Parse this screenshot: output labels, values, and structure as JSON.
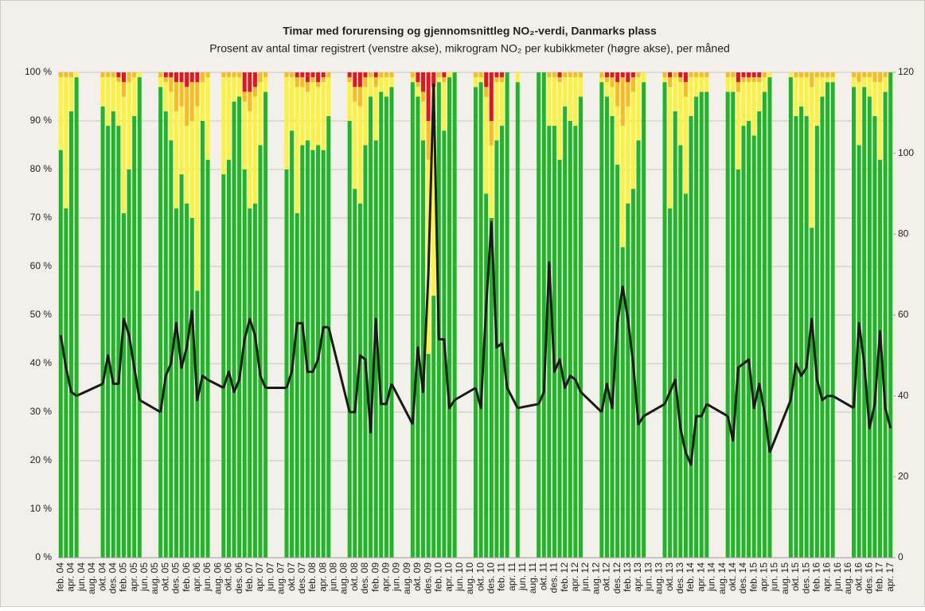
{
  "chart_data": {
    "type": "bar",
    "stacked": true,
    "title": "Timar med forurensing og gjennomsnittleg NO₂-verdi, Danmarks plass",
    "subtitle": "Prosent av antal timar registrert (venstre akse), mikrogram NO₂ per kubikkmeter (høgre akse), per måned",
    "categories": [
      "feb. 04",
      null,
      "apr. 04",
      null,
      "jun. 04",
      null,
      "aug. 04",
      null,
      "okt. 04",
      null,
      "des. 04",
      null,
      "feb. 05",
      null,
      "apr. 05",
      null,
      "jun. 05",
      null,
      "aug. 05",
      null,
      "okt. 05",
      null,
      "des. 05",
      null,
      "feb. 06",
      null,
      "apr. 06",
      null,
      "jun. 06",
      null,
      "aug. 06",
      null,
      "okt. 06",
      null,
      "des. 06",
      null,
      "feb. 07",
      null,
      "apr. 07",
      null,
      "jun. 07",
      null,
      "aug. 07",
      null,
      "okt. 07",
      null,
      "des. 07",
      null,
      "feb. 08",
      null,
      "apr. 08",
      null,
      "jun. 08",
      null,
      "aug. 08",
      null,
      "okt. 08",
      null,
      "des. 08",
      null,
      "feb. 09",
      null,
      "apr. 09",
      null,
      "jun. 09",
      null,
      "aug. 09",
      null,
      "okt. 09",
      null,
      "des. 09",
      null,
      "feb. 10",
      null,
      "apr. 10",
      null,
      "jun. 10",
      null,
      "aug. 10",
      null,
      "okt. 10",
      null,
      "des. 10",
      null,
      "feb. 11",
      null,
      "apr. 11",
      null,
      "jun. 11",
      null,
      "aug. 11",
      null,
      "okt. 11",
      null,
      "des. 11",
      null,
      "feb. 12",
      null,
      "apr. 12",
      null,
      "jun. 12",
      null,
      "aug. 12",
      null,
      "okt. 12",
      null,
      "des. 12",
      null,
      "feb. 13",
      null,
      "apr. 13",
      null,
      "jun. 13",
      null,
      "aug. 13",
      null,
      "okt. 13",
      null,
      "des. 13",
      null,
      "feb. 14",
      null,
      "apr. 14",
      null,
      "jun. 14",
      null,
      "aug. 14",
      null,
      "okt. 14",
      null,
      "des. 14",
      null,
      "feb. 15",
      null,
      "apr. 15",
      null,
      "jun. 15",
      null,
      "aug. 15",
      null,
      "okt. 15",
      null,
      "des. 15",
      null,
      "feb. 16",
      null,
      "apr. 16",
      null,
      "jun. 16",
      null,
      "aug. 16",
      null,
      "okt. 16",
      null,
      "des. 16",
      null,
      "feb. 17",
      null,
      "apr. 17"
    ],
    "series": [
      {
        "color": "#1fb526",
        "values": [
          84,
          72,
          92,
          99,
          null,
          null,
          null,
          null,
          93,
          89,
          92,
          89,
          71,
          80,
          91,
          99,
          null,
          null,
          null,
          97,
          92,
          86,
          72,
          79,
          73,
          70,
          55,
          90,
          82,
          null,
          null,
          79,
          82,
          94,
          95,
          80,
          72,
          73,
          85,
          96,
          null,
          null,
          null,
          80,
          88,
          71,
          85,
          86,
          84,
          85,
          84,
          91,
          null,
          null,
          null,
          90,
          76,
          73,
          85,
          95,
          86,
          96,
          95,
          97,
          null,
          null,
          null,
          98,
          95,
          86,
          42,
          54,
          98,
          88,
          99,
          100,
          null,
          null,
          null,
          97,
          98,
          75,
          70,
          86,
          89,
          100,
          null,
          98,
          null,
          null,
          null,
          100,
          100,
          89,
          89,
          82,
          93,
          90,
          89,
          95,
          null,
          null,
          null,
          98,
          95,
          91,
          81,
          64,
          73,
          76,
          86,
          98,
          null,
          null,
          null,
          98,
          72,
          92,
          85,
          75,
          91,
          95,
          96,
          96,
          null,
          null,
          null,
          96,
          96,
          80,
          89,
          90,
          87,
          92,
          96,
          99,
          null,
          null,
          null,
          99,
          91,
          93,
          91,
          68,
          89,
          95,
          98,
          98,
          null,
          null,
          null,
          97,
          85,
          97,
          95,
          91,
          82,
          96,
          100
        ]
      },
      {
        "color": "#fbf23a",
        "values": [
          15,
          27,
          7,
          1,
          null,
          null,
          null,
          null,
          6,
          10,
          7,
          9,
          24,
          18,
          8,
          1,
          null,
          null,
          null,
          2,
          6,
          10,
          20,
          14,
          16,
          20,
          38,
          8,
          17,
          null,
          null,
          20,
          17,
          5,
          4,
          14,
          20,
          22,
          13,
          3,
          null,
          null,
          null,
          19,
          11,
          26,
          12,
          10,
          14,
          12,
          14,
          8,
          null,
          null,
          null,
          8,
          18,
          20,
          12,
          4,
          11,
          3,
          4,
          2,
          null,
          null,
          null,
          1,
          2,
          8,
          40,
          40,
          1,
          10,
          1,
          0,
          null,
          null,
          null,
          2,
          1,
          20,
          15,
          12,
          9,
          0,
          null,
          2,
          null,
          null,
          null,
          0,
          0,
          10,
          10,
          16,
          6,
          9,
          10,
          4,
          null,
          null,
          null,
          1,
          3,
          6,
          12,
          25,
          20,
          20,
          13,
          2,
          null,
          null,
          null,
          1,
          25,
          7,
          13,
          20,
          8,
          4,
          3,
          3,
          null,
          null,
          null,
          3,
          3,
          16,
          9,
          8,
          11,
          6,
          3,
          1,
          null,
          null,
          null,
          1,
          8,
          6,
          8,
          29,
          10,
          4,
          1,
          1,
          null,
          null,
          null,
          2,
          13,
          2,
          4,
          7,
          16,
          3,
          0
        ]
      },
      {
        "color": "#f9bd18",
        "values": [
          1,
          1,
          1,
          0,
          null,
          null,
          null,
          null,
          1,
          1,
          1,
          1,
          3,
          2,
          1,
          0,
          null,
          null,
          null,
          1,
          1,
          3,
          6,
          5,
          8,
          8,
          5,
          2,
          1,
          null,
          null,
          1,
          1,
          1,
          1,
          2,
          4,
          2,
          2,
          1,
          null,
          null,
          null,
          1,
          1,
          2,
          2,
          2,
          1,
          1,
          1,
          1,
          null,
          null,
          null,
          1,
          3,
          4,
          2,
          1,
          2,
          1,
          1,
          1,
          null,
          null,
          null,
          1,
          1,
          2,
          8,
          3,
          1,
          1,
          0,
          0,
          null,
          null,
          null,
          1,
          1,
          2,
          5,
          1,
          1,
          0,
          null,
          0,
          null,
          null,
          null,
          0,
          0,
          1,
          1,
          1,
          1,
          1,
          1,
          1,
          null,
          null,
          null,
          1,
          1,
          2,
          5,
          10,
          5,
          3,
          1,
          0,
          null,
          null,
          null,
          1,
          2,
          1,
          1,
          3,
          1,
          1,
          1,
          1,
          null,
          null,
          null,
          1,
          1,
          2,
          1,
          1,
          1,
          1,
          1,
          0,
          null,
          null,
          null,
          0,
          1,
          1,
          1,
          3,
          1,
          1,
          1,
          1,
          null,
          null,
          null,
          1,
          2,
          1,
          1,
          2,
          2,
          1,
          0
        ]
      },
      {
        "color": "#e8141c",
        "values": [
          0,
          0,
          0,
          0,
          null,
          null,
          null,
          null,
          0,
          0,
          0,
          1,
          2,
          0,
          0,
          0,
          null,
          null,
          null,
          0,
          1,
          1,
          2,
          2,
          3,
          2,
          2,
          0,
          0,
          null,
          null,
          0,
          0,
          0,
          0,
          4,
          4,
          3,
          0,
          0,
          null,
          null,
          null,
          0,
          0,
          1,
          1,
          2,
          1,
          2,
          1,
          0,
          null,
          null,
          null,
          1,
          3,
          3,
          1,
          0,
          1,
          0,
          0,
          0,
          null,
          null,
          null,
          0,
          2,
          4,
          10,
          3,
          0,
          1,
          0,
          0,
          null,
          null,
          null,
          0,
          0,
          3,
          10,
          1,
          1,
          0,
          null,
          0,
          null,
          null,
          null,
          0,
          0,
          0,
          0,
          1,
          0,
          0,
          0,
          0,
          null,
          null,
          null,
          0,
          1,
          1,
          2,
          1,
          2,
          1,
          0,
          0,
          null,
          null,
          null,
          0,
          1,
          0,
          1,
          2,
          0,
          0,
          0,
          0,
          null,
          null,
          null,
          0,
          0,
          2,
          1,
          1,
          1,
          1,
          0,
          0,
          null,
          null,
          null,
          0,
          0,
          0,
          0,
          0,
          0,
          0,
          0,
          0,
          null,
          null,
          null,
          0,
          0,
          0,
          0,
          0,
          0,
          0,
          0
        ]
      },
      {
        "type": "line",
        "axis": "y2",
        "color": "#1a1a1a",
        "values": [
          55,
          47,
          41,
          40,
          null,
          null,
          null,
          null,
          43,
          50,
          43,
          43,
          59,
          55,
          47,
          39,
          null,
          null,
          null,
          36,
          45,
          48,
          58,
          47,
          52,
          61,
          39,
          45,
          44,
          null,
          null,
          42,
          46,
          41,
          44,
          54,
          59,
          55,
          45,
          42,
          null,
          null,
          null,
          42,
          46,
          58,
          58,
          46,
          46,
          49,
          57,
          57,
          null,
          null,
          null,
          36,
          36,
          50,
          49,
          31,
          59,
          38,
          38,
          43,
          null,
          null,
          null,
          33,
          52,
          41,
          70,
          117,
          54,
          54,
          37,
          39,
          null,
          null,
          null,
          42,
          37,
          62,
          83,
          52,
          53,
          42,
          null,
          37,
          null,
          null,
          null,
          38,
          41,
          73,
          46,
          49,
          42,
          45,
          44,
          41,
          null,
          null,
          null,
          36,
          43,
          37,
          58,
          67,
          59,
          48,
          33,
          35,
          null,
          null,
          null,
          38,
          41,
          44,
          32,
          26,
          23,
          35,
          35,
          38,
          null,
          null,
          null,
          35,
          29,
          47,
          48,
          49,
          37,
          43,
          36,
          26,
          null,
          null,
          null,
          39,
          48,
          45,
          47,
          59,
          44,
          39,
          40,
          40,
          null,
          null,
          null,
          37,
          58,
          48,
          32,
          38,
          56,
          37,
          32
        ]
      }
    ],
    "ylim": [
      0,
      100
    ],
    "yticks": [
      {
        "value": 0,
        "label": "0 %"
      },
      {
        "value": 10,
        "label": "10 %"
      },
      {
        "value": 20,
        "label": "20 %"
      },
      {
        "value": 30,
        "label": "30 %"
      },
      {
        "value": 40,
        "label": "40 %"
      },
      {
        "value": 50,
        "label": "50 %"
      },
      {
        "value": 60,
        "label": "60 %"
      },
      {
        "value": 70,
        "label": "70 %"
      },
      {
        "value": 80,
        "label": "80 %"
      },
      {
        "value": 90,
        "label": "90 %"
      },
      {
        "value": 100,
        "label": "100 %"
      }
    ],
    "y2lim": [
      0,
      120
    ],
    "y2ticks": [
      0,
      20,
      40,
      60,
      80,
      100,
      120
    ],
    "grid": true
  }
}
